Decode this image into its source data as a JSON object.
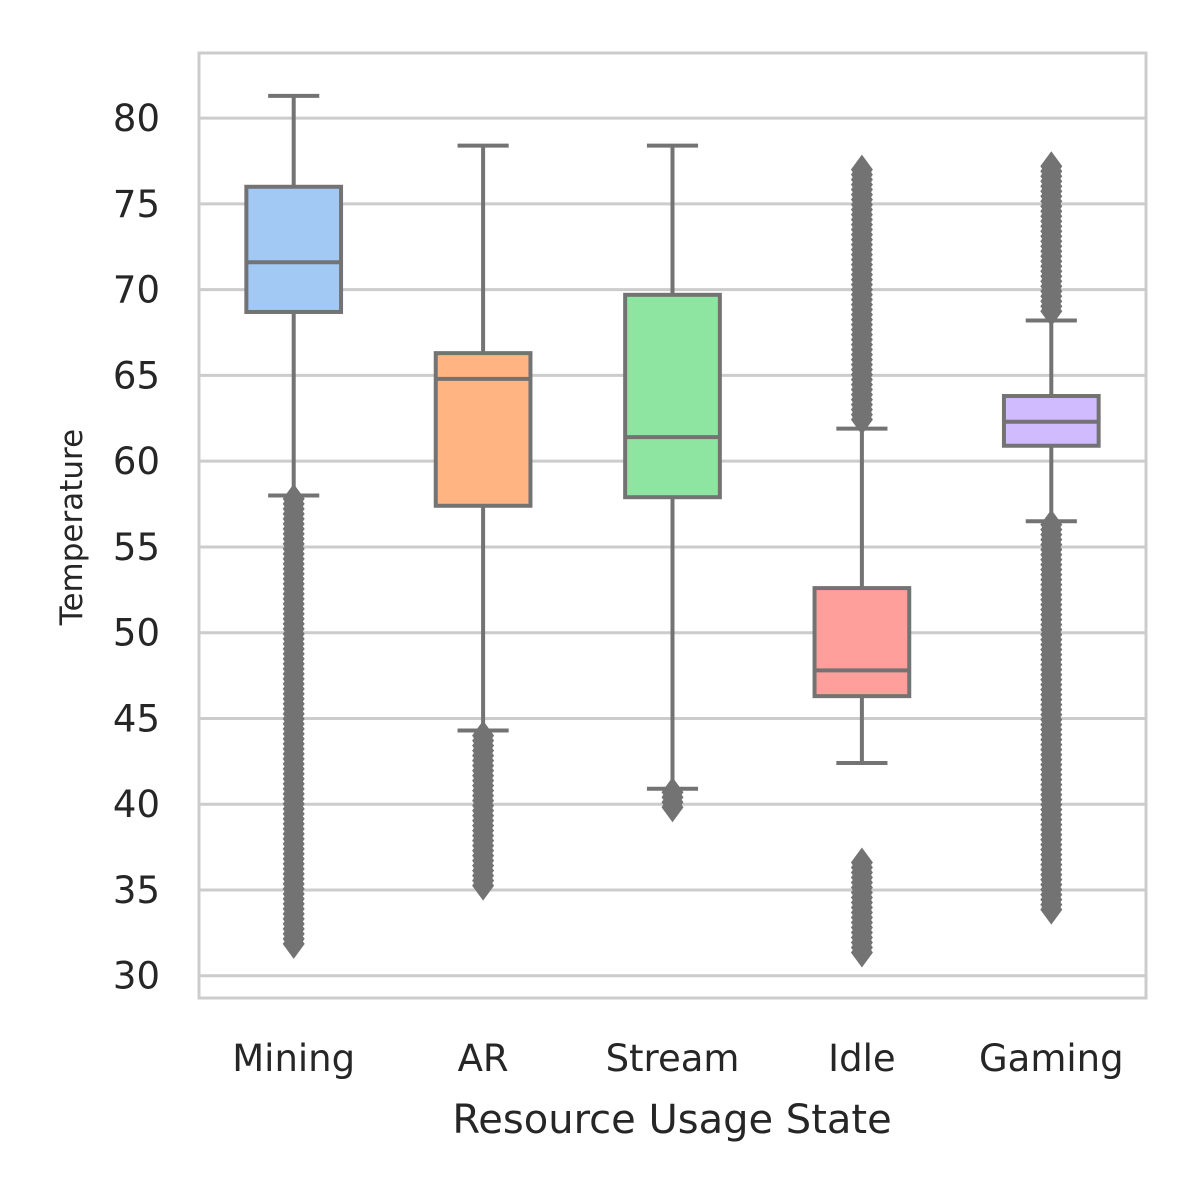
{
  "chart_data": {
    "type": "box",
    "xlabel": "Resource Usage State",
    "ylabel": "Temperature",
    "ylim": [
      28.7,
      83.8
    ],
    "yticks": [
      30,
      35,
      40,
      45,
      50,
      55,
      60,
      65,
      70,
      75,
      80
    ],
    "grid": "horizontal",
    "series": [
      {
        "name": "Mining",
        "color": "#a1c9f4",
        "whisker_low": 58.0,
        "q1": 68.7,
        "median": 71.6,
        "q3": 76.0,
        "whisker_high": 81.3,
        "outliers_range": [
          31.8,
          57.8
        ]
      },
      {
        "name": "AR",
        "color": "#ffb482",
        "whisker_low": 44.3,
        "q1": 57.4,
        "median": 64.8,
        "q3": 66.3,
        "whisker_high": 78.4,
        "outliers_range": [
          35.2,
          44.0
        ]
      },
      {
        "name": "Stream",
        "color": "#8de5a1",
        "whisker_low": 40.9,
        "q1": 57.9,
        "median": 61.4,
        "q3": 69.7,
        "whisker_high": 78.4,
        "outliers_range": [
          39.8,
          40.7
        ]
      },
      {
        "name": "Idle",
        "color": "#ff9f9b",
        "whisker_low": 42.4,
        "q1": 46.3,
        "median": 47.8,
        "q3": 52.6,
        "whisker_high": 61.9,
        "outliers_range": [
          31.2,
          36.6
        ],
        "outliers_high_range": [
          62.2,
          77.0
        ]
      },
      {
        "name": "Gaming",
        "color": "#d0bbff",
        "whisker_low": 56.5,
        "q1": 60.9,
        "median": 62.3,
        "q3": 63.8,
        "whisker_high": 68.2,
        "outliers_range": [
          33.8,
          56.3
        ],
        "outliers_high_range": [
          68.5,
          77.2
        ]
      }
    ]
  },
  "colors": {
    "box_edge": "#737373",
    "grid": "#cccccc",
    "frame": "#cccccc"
  }
}
